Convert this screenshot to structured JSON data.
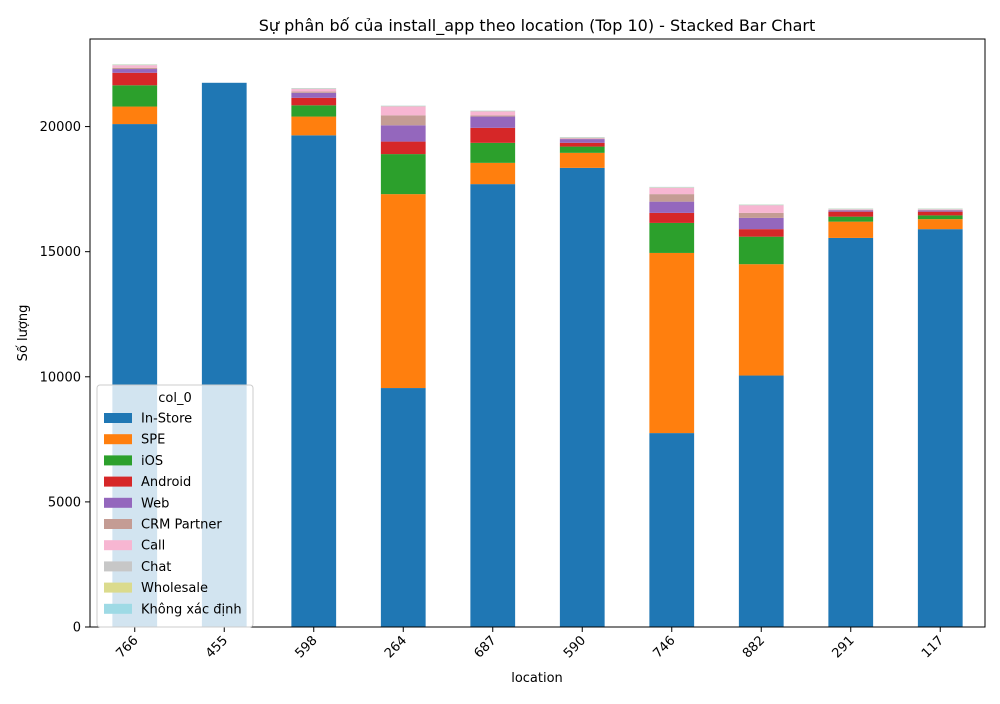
{
  "chart_data": {
    "type": "bar",
    "stacked": true,
    "title": "Sự phân bố của install_app theo location (Top 10) - Stacked Bar Chart",
    "xlabel": "location",
    "ylabel": "Số lượng",
    "ylim": [
      0,
      23500
    ],
    "yticks": [
      0,
      5000,
      10000,
      15000,
      20000
    ],
    "ytick_labels": [
      "0",
      "5000",
      "10000",
      "15000",
      "20000"
    ],
    "grid": false,
    "legend": {
      "title": "col_0",
      "placement": "lower-left"
    },
    "categories": [
      "766",
      "455",
      "598",
      "264",
      "687",
      "590",
      "746",
      "882",
      "291",
      "117"
    ],
    "series": [
      {
        "name": "In-Store",
        "color": "#1f77b4",
        "values": [
          20100,
          21750,
          19650,
          9550,
          17700,
          18350,
          7750,
          10050,
          15550,
          15900
        ]
      },
      {
        "name": "SPE",
        "color": "#ff7f0e",
        "values": [
          700,
          0,
          750,
          7750,
          850,
          600,
          7200,
          4450,
          650,
          400
        ]
      },
      {
        "name": "iOS",
        "color": "#2ca02c",
        "values": [
          850,
          0,
          450,
          1600,
          800,
          250,
          1200,
          1100,
          200,
          150
        ]
      },
      {
        "name": "Android",
        "color": "#d62728",
        "values": [
          500,
          0,
          300,
          500,
          600,
          150,
          400,
          300,
          200,
          150
        ]
      },
      {
        "name": "Web",
        "color": "#9467bd",
        "values": [
          150,
          0,
          200,
          650,
          450,
          150,
          450,
          450,
          50,
          50
        ]
      },
      {
        "name": "CRM Partner",
        "color": "#c49c94",
        "values": [
          50,
          0,
          50,
          400,
          50,
          20,
          300,
          200,
          20,
          20
        ]
      },
      {
        "name": "Call",
        "color": "#f7b6d2",
        "values": [
          100,
          0,
          100,
          350,
          150,
          20,
          250,
          300,
          20,
          20
        ]
      },
      {
        "name": "Chat",
        "color": "#c7c7c7",
        "values": [
          20,
          0,
          20,
          20,
          20,
          20,
          20,
          20,
          20,
          20
        ]
      },
      {
        "name": "Wholesale",
        "color": "#dbdb8d",
        "values": [
          10,
          0,
          10,
          10,
          10,
          10,
          10,
          10,
          10,
          10
        ]
      },
      {
        "name": "Không xác định",
        "color": "#9edae5",
        "values": [
          10,
          0,
          10,
          10,
          10,
          10,
          10,
          10,
          10,
          10
        ]
      }
    ]
  }
}
